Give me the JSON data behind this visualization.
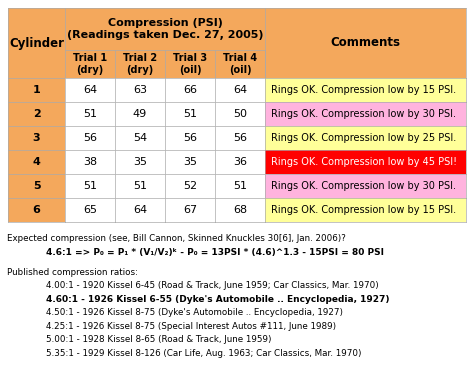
{
  "title_line1": "Compression (PSI)",
  "title_line2": "(Readings taken Dec. 27, 2005)",
  "rows": [
    {
      "cyl": "1",
      "t1": "64",
      "t2": "63",
      "t3": "66",
      "t4": "64",
      "comment": "Rings OK. Compression low by 15 PSI.",
      "cyl_color": "#F4A85C",
      "comment_color": "#FFFF99",
      "comment_text": "black"
    },
    {
      "cyl": "2",
      "t1": "51",
      "t2": "49",
      "t3": "51",
      "t4": "50",
      "comment": "Rings OK. Compression low by 30 PSI.",
      "cyl_color": "#F4A85C",
      "comment_color": "#FFB3DE",
      "comment_text": "black"
    },
    {
      "cyl": "3",
      "t1": "56",
      "t2": "54",
      "t3": "56",
      "t4": "56",
      "comment": "Rings OK. Compression low by 25 PSI.",
      "cyl_color": "#F4A85C",
      "comment_color": "#FFFF99",
      "comment_text": "black"
    },
    {
      "cyl": "4",
      "t1": "38",
      "t2": "35",
      "t3": "35",
      "t4": "36",
      "comment": "Rings OK. Compression low by 45 PSI!",
      "cyl_color": "#F4A85C",
      "comment_color": "#FF0000",
      "comment_text": "white"
    },
    {
      "cyl": "5",
      "t1": "51",
      "t2": "51",
      "t3": "52",
      "t4": "51",
      "comment": "Rings OK. Compression low by 30 PSI.",
      "cyl_color": "#F4A85C",
      "comment_color": "#FFB3DE",
      "comment_text": "black"
    },
    {
      "cyl": "6",
      "t1": "65",
      "t2": "64",
      "t3": "67",
      "t4": "68",
      "comment": "Rings OK. Compression low by 15 PSI.",
      "cyl_color": "#F4A85C",
      "comment_color": "#FFFF99",
      "comment_text": "black"
    }
  ],
  "header_bg": "#F4A85C",
  "trial_bg": "#FFFFFF",
  "border_color": "#AAAAAA",
  "bg_color": "#FFFFFF",
  "footer": [
    {
      "text": "Expected compression (see, Bill Cannon, Skinned Knuckles 30[6], Jan. 2006)?",
      "bold": false,
      "indent": false
    },
    {
      "text": "4.6:1 => P₀ = P₁ * (V₁/V₂)ᵏ - P₀ = 13PSI * (4.6)^1.3 - 15PSI = 80 PSI",
      "bold": true,
      "indent": true
    },
    {
      "text": "",
      "bold": false,
      "indent": false
    },
    {
      "text": "Published compression ratios:",
      "bold": false,
      "indent": false
    },
    {
      "text": "4.00:1 - 1920 Kissel 6-45 (Road & Track, June 1959; Car Classics, Mar. 1970)",
      "bold": false,
      "indent": true
    },
    {
      "text": "4.60:1 - 1926 Kissel 6-55 (Dyke's Automobile .. Encyclopedia, 1927)",
      "bold": true,
      "indent": true
    },
    {
      "text": "4.50:1 - 1926 Kissel 8-75 (Dyke's Automobile .. Encyclopedia, 1927)",
      "bold": false,
      "indent": true
    },
    {
      "text": "4.25:1 - 1926 Kissel 8-75 (Special Interest Autos #111, June 1989)",
      "bold": false,
      "indent": true
    },
    {
      "text": "5.00:1 - 1928 Kissel 8-65 (Road & Track, June 1959)",
      "bold": false,
      "indent": true
    },
    {
      "text": "5.35:1 - 1929 Kissel 8-126 (Car Life, Aug. 1963; Car Classics, Mar. 1970)",
      "bold": false,
      "indent": true
    }
  ]
}
